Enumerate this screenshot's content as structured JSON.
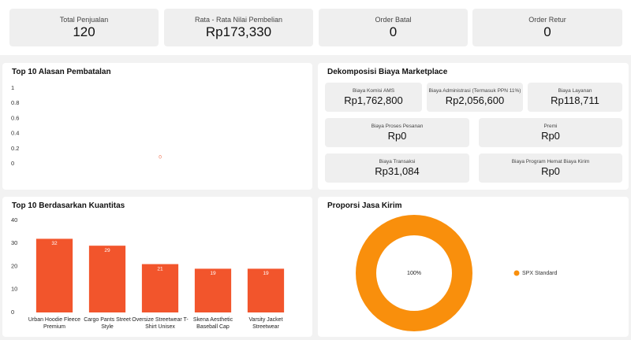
{
  "kpis": [
    {
      "label": "Total Penjualan",
      "value": "120"
    },
    {
      "label": "Rata - Rata Nilai Pembelian",
      "value": "Rp173,330"
    },
    {
      "label": "Order Batal",
      "value": "0"
    },
    {
      "label": "Order Retur",
      "value": "0"
    }
  ],
  "fees": {
    "title": "Dekomposisi Biaya Marketplace",
    "items": [
      {
        "label": "Biaya Komisi AMS",
        "value": "Rp1,762,800"
      },
      {
        "label": "Biaya Administrasi (Termasuk PPN 11%)",
        "value": "Rp2,056,600"
      },
      {
        "label": "Biaya Layanan",
        "value": "Rp118,711"
      },
      {
        "label": "Biaya Proses Pesanan",
        "value": "Rp0"
      },
      {
        "label": "Premi",
        "value": "Rp0"
      },
      {
        "label": "Biaya Transaksi",
        "value": "Rp31,084"
      },
      {
        "label": "Biaya Program Hemat Biaya Kirim",
        "value": "Rp0"
      }
    ]
  },
  "chart_data": [
    {
      "type": "bar",
      "title": "Top 10 Alasan Pembatalan",
      "categories": [
        null
      ],
      "values": [
        0
      ],
      "color": "#f0704f",
      "ylim": [
        0,
        1
      ],
      "yticks": [
        0,
        0.2,
        0.4,
        0.6,
        0.8,
        1
      ]
    },
    {
      "type": "bar",
      "title": "Top 10 Berdasarkan Kuantitas",
      "categories": [
        "Urban Hoodie Fleece Premium",
        "Cargo Pants Street Style",
        "Oversize Streetwear T-Shirt Unisex",
        "Skena Aesthetic Baseball Cap",
        "Varsity Jacket Streetwear"
      ],
      "values": [
        32,
        29,
        21,
        19,
        19
      ],
      "color": "#f2552c",
      "ylim": [
        0,
        40
      ],
      "yticks": [
        0,
        10,
        20,
        30,
        40
      ]
    },
    {
      "type": "pie",
      "title": "Proporsi Jasa Kirim",
      "categories": [
        "SPX Standard"
      ],
      "values": [
        100
      ],
      "value_labels": [
        "100%"
      ],
      "colors": [
        "#f98f0c"
      ]
    }
  ]
}
